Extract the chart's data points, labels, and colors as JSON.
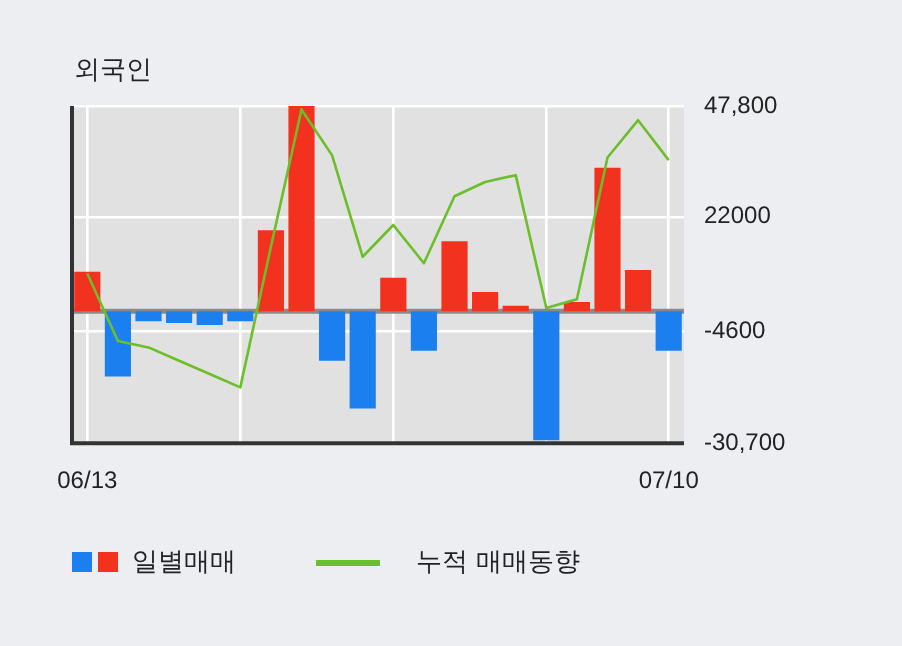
{
  "chart_data": {
    "type": "bar",
    "title": "외국인",
    "categories": [
      "06/13",
      null,
      null,
      null,
      null,
      null,
      null,
      null,
      null,
      null,
      null,
      null,
      null,
      null,
      null,
      null,
      null,
      null,
      null,
      "07/10"
    ],
    "series": [
      {
        "name": "일별매매",
        "colors": [
          "#f2321e",
          "#1c7ff0",
          "#1c7ff0",
          "#1c7ff0",
          "#1c7ff0",
          "#1c7ff0",
          "#f2321e",
          "#f2321e",
          "#1c7ff0",
          "#1c7ff0",
          "#f2321e",
          "#1c7ff0",
          "#f2321e",
          "#f2321e",
          "#f2321e",
          "#1c7ff0",
          "#f2321e",
          "#f2321e",
          "#f2321e",
          "#1c7ff0"
        ],
        "values": [
          9200,
          -15200,
          -2300,
          -2700,
          -3200,
          -2300,
          18900,
          47800,
          -11500,
          -22600,
          7800,
          -9200,
          16300,
          4500,
          1300,
          -30000,
          2200,
          33400,
          9600,
          -9200
        ]
      },
      {
        "type": "line",
        "name": "누적 매매동향",
        "color": "#6cbf2a",
        "values": [
          8800,
          -6900,
          -8400,
          -11500,
          -14600,
          -17700,
          15000,
          47000,
          36300,
          12700,
          20100,
          11200,
          26800,
          30100,
          31700,
          800,
          2800,
          35800,
          44500,
          35200
        ]
      }
    ],
    "ylim": [
      -30700,
      47800
    ],
    "yticks": [
      {
        "value": 47800,
        "label": "47,800"
      },
      {
        "value": 22000,
        "label": "22000"
      },
      {
        "value": -4600,
        "label": "-4600"
      },
      {
        "value": -30700,
        "label": "-30,700"
      }
    ],
    "ref_lines": [
      {
        "axis": "y",
        "value": 0,
        "color": "#8a8a8a"
      }
    ],
    "grid": true,
    "legend": "bottom",
    "marker": "none"
  }
}
